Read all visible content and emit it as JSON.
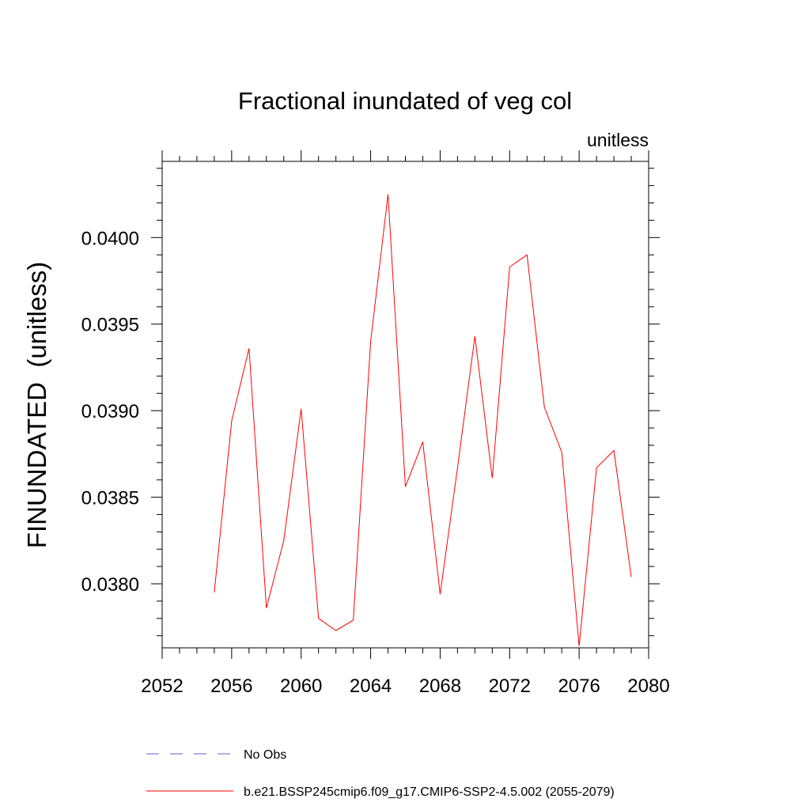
{
  "chart_data": {
    "type": "line",
    "title": "Fractional inundated of veg col",
    "units_label": "unitless",
    "ylabel": "FINUNDATED  (unitless)",
    "xlabel": "",
    "xlim": [
      2052,
      2080
    ],
    "ylim": [
      0.03763,
      0.04044
    ],
    "x_ticks": [
      2052,
      2056,
      2060,
      2064,
      2068,
      2072,
      2076,
      2080
    ],
    "x_tick_labels": [
      "2052",
      "2056",
      "2060",
      "2064",
      "2068",
      "2072",
      "2076",
      "2080"
    ],
    "x_minor_step": 1,
    "y_ticks": [
      0.038,
      0.0385,
      0.039,
      0.0395,
      0.04
    ],
    "y_tick_labels": [
      "0.0380",
      "0.0385",
      "0.0390",
      "0.0395",
      "0.0400"
    ],
    "y_minor_step": 0.0001,
    "grid": false,
    "legend_position": "bottom",
    "series": [
      {
        "name": "b.e21.BSSP245cmip6.f09_g17.CMIP6-SSP2-4.5.002 (2055-2079)",
        "color": "#ff0000",
        "dash": "solid",
        "x": [
          2055,
          2056,
          2057,
          2058,
          2059,
          2060,
          2061,
          2062,
          2063,
          2064,
          2065,
          2066,
          2067,
          2068,
          2069,
          2070,
          2071,
          2072,
          2073,
          2074,
          2075,
          2076,
          2077,
          2078,
          2079
        ],
        "values": [
          0.03795,
          0.03894,
          0.03936,
          0.03786,
          0.03825,
          0.03901,
          0.0378,
          0.03773,
          0.03779,
          0.0394,
          0.04025,
          0.03856,
          0.03882,
          0.03794,
          0.03867,
          0.03943,
          0.03861,
          0.03983,
          0.0399,
          0.03902,
          0.03876,
          0.03764,
          0.03867,
          0.03877,
          0.03804
        ]
      },
      {
        "name": "No Obs",
        "color": "#6a5acd",
        "dash": "dashed",
        "x": [],
        "values": []
      }
    ]
  }
}
